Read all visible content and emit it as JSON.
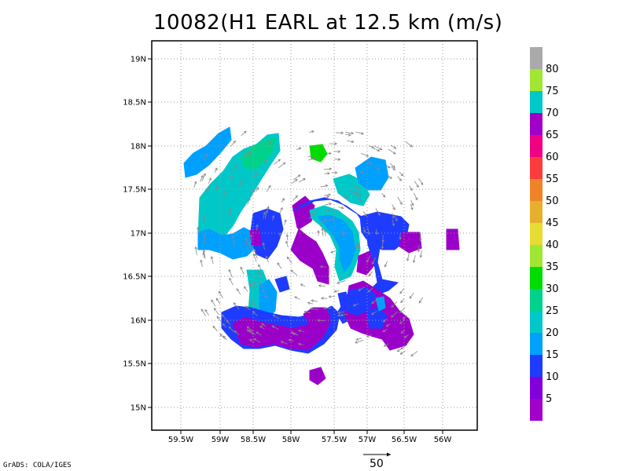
{
  "title": "10082(H1 EARL at 12.5 km (m/s)",
  "credit": "GrADS: COLA/IGES",
  "vector_scale": {
    "label": "50"
  },
  "map": {
    "lon_ticks": [
      "59.5W",
      "59W",
      "58.5W",
      "58W",
      "57.5W",
      "57W",
      "56.5W",
      "56W"
    ],
    "lat_ticks": [
      "19N",
      "18.5N",
      "18N",
      "17.5N",
      "17N",
      "16.5N",
      "16N",
      "15.5N",
      "15N"
    ],
    "lon_range": [
      -59.85,
      -55.6
    ],
    "lat_range": [
      14.75,
      19.1
    ],
    "grid": "dotted"
  },
  "colorbar": {
    "labels": [
      "5",
      "10",
      "15",
      "20",
      "25",
      "30",
      "35",
      "40",
      "45",
      "50",
      "55",
      "60",
      "65",
      "70",
      "75",
      "80"
    ],
    "colors": [
      "#a000c8",
      "#8200dc",
      "#1e3cff",
      "#00a0ff",
      "#00c8c8",
      "#00d28c",
      "#00dc00",
      "#a0e632",
      "#e6dc32",
      "#e6af2d",
      "#f08228",
      "#fa3c3c",
      "#f00082",
      "#a000c8",
      "#00c8c8",
      "#a0e632",
      "#aaaaaa"
    ]
  },
  "legend_colors": {
    "purple": "#9b00c8",
    "violet": "#7a00d8",
    "blue": "#1e3cff",
    "sky": "#00a0ff",
    "cyan": "#00c8c8",
    "teal": "#00d28c",
    "green": "#00dc00"
  }
}
